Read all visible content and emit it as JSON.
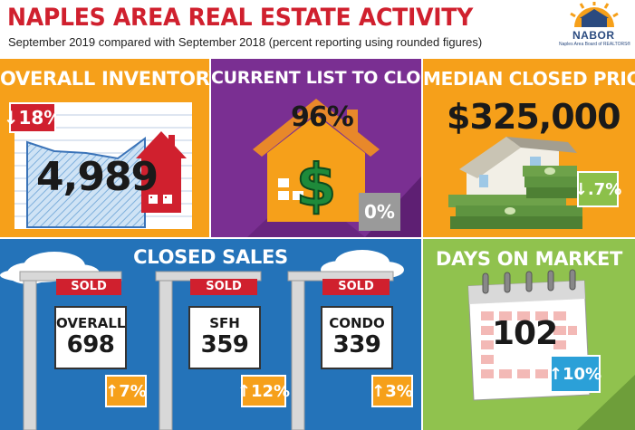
{
  "header": {
    "title": "NAPLES AREA REAL ESTATE ACTIVITY",
    "subtitle": "September 2019 compared with September 2018 (percent reporting using rounded figures)",
    "logo_name": "NABOR",
    "logo_sub": "Naples Area Board of REALTORS®"
  },
  "inventory": {
    "title": "OVERALL INVENTORY",
    "value": "4,989",
    "change": "18%",
    "direction": "down",
    "color": "#d0202e"
  },
  "list_to_closed": {
    "title": "CURRENT LIST TO CLOSED",
    "value": "96%",
    "change": "0%",
    "color": "#9a9a9a"
  },
  "median_price": {
    "title": "MEDIAN CLOSED PRICE",
    "value": "$325,000",
    "change": ".7%",
    "direction": "down",
    "color": "#8cc04a"
  },
  "closed_sales": {
    "title": "CLOSED SALES",
    "sold_label": "SOLD",
    "items": [
      {
        "label": "OVERALL",
        "value": "698",
        "change": "7%",
        "direction": "up"
      },
      {
        "label": "SFH",
        "value": "359",
        "change": "12%",
        "direction": "up"
      },
      {
        "label": "CONDO",
        "value": "339",
        "change": "3%",
        "direction": "up"
      }
    ],
    "badge_color": "#f6a01a"
  },
  "days_on_market": {
    "title": "DAYS ON MARKET",
    "value": "102",
    "change": "10%",
    "direction": "up",
    "color": "#2ba0d8"
  },
  "icons": [
    "sun-logo-icon",
    "house-icon",
    "dollar-icon",
    "money-stack-icon",
    "calendar-icon",
    "cloud-icon",
    "up-arrow-icon",
    "down-arrow-icon"
  ]
}
